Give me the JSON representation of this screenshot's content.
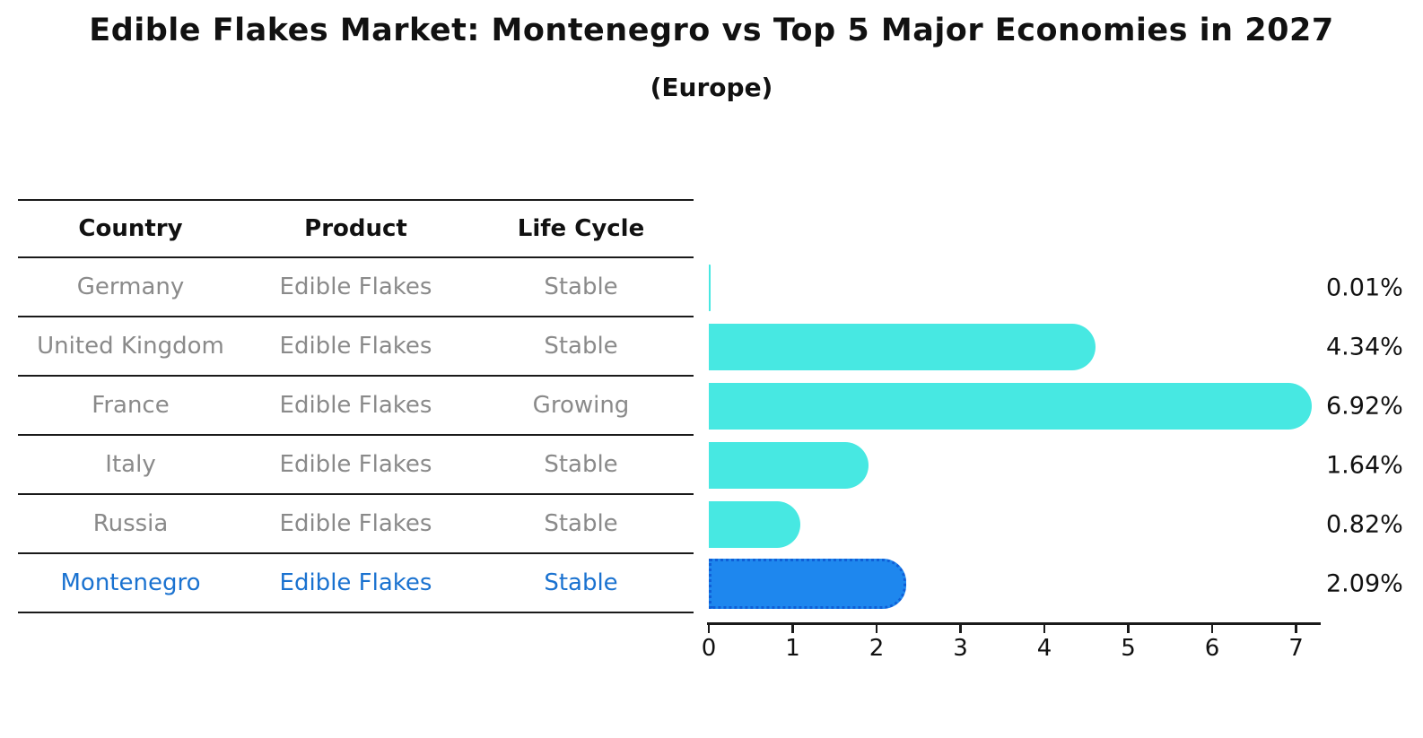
{
  "title": "Edible Flakes Market: Montenegro vs Top 5 Major Economies in 2027",
  "subtitle": "(Europe)",
  "table": {
    "headers": [
      "Country",
      "Product",
      "Life Cycle"
    ],
    "rows": [
      {
        "country": "Germany",
        "product": "Edible Flakes",
        "life_cycle": "Stable",
        "highlight": false
      },
      {
        "country": "United Kingdom",
        "product": "Edible Flakes",
        "life_cycle": "Stable",
        "highlight": false
      },
      {
        "country": "France",
        "product": "Edible Flakes",
        "life_cycle": "Growing",
        "highlight": false
      },
      {
        "country": "Italy",
        "product": "Edible Flakes",
        "life_cycle": "Stable",
        "highlight": false
      },
      {
        "country": "Russia",
        "product": "Edible Flakes",
        "life_cycle": "Stable",
        "highlight": false
      },
      {
        "country": "Montenegro",
        "product": "Edible Flakes",
        "life_cycle": "Stable",
        "highlight": true
      }
    ]
  },
  "chart_data": {
    "type": "bar",
    "orientation": "horizontal",
    "title": "Edible Flakes Market: Montenegro vs Top 5 Major Economies in 2027 (Europe)",
    "categories": [
      "Germany",
      "United Kingdom",
      "France",
      "Italy",
      "Russia",
      "Montenegro"
    ],
    "values": [
      0.01,
      4.34,
      6.92,
      1.64,
      0.82,
      2.09
    ],
    "value_labels": [
      "0.01%",
      "4.34%",
      "6.92%",
      "1.64%",
      "0.82%",
      "2.09%"
    ],
    "x_ticks": [
      0,
      1,
      2,
      3,
      4,
      5,
      6,
      7
    ],
    "xlim": [
      0,
      7.3
    ],
    "grid": false,
    "legend": false,
    "highlight_index": 5,
    "colors": {
      "bar": "#47E8E2",
      "highlight_bar": "#1E87EE",
      "highlight_border": "#0F5FD7",
      "axis": "#1a1a1a",
      "value_label": "#111111"
    }
  },
  "colors": {
    "background": "#ffffff",
    "title_text": "#111111",
    "header_text": "#111111",
    "row_text": "#8a8a8a",
    "highlight_text": "#1a72d0",
    "table_line": "#1a1a1a"
  }
}
